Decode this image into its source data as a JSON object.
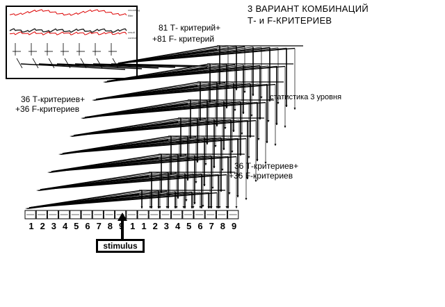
{
  "title": {
    "line1": "3  ВАРИАНТ  КОМБИНАЦИЙ",
    "line2": "Т-  и  F-КРИТЕРИЕВ"
  },
  "labels": {
    "top": {
      "line1": "81 Т- критерий+",
      "line2": "+81 F- критерий"
    },
    "left": {
      "line1": "36 Т-критериев+",
      "line2": "+36 F-критериев"
    },
    "right_mid": {
      "line1": "36 Т-критериев+",
      "line2": "+36 F-критериев"
    },
    "stats": "статистика 3 уровня"
  },
  "electrode_numbers": [
    "1",
    "2",
    "3",
    "4",
    "5",
    "6",
    "7",
    "8",
    "9",
    "1",
    "1",
    "2",
    "3",
    "4",
    "5",
    "6",
    "7",
    "8",
    "9"
  ],
  "stimulus": "stimulus",
  "inset": {
    "tags": [
      "recording",
      "filter",
      "result",
      "control"
    ]
  }
}
